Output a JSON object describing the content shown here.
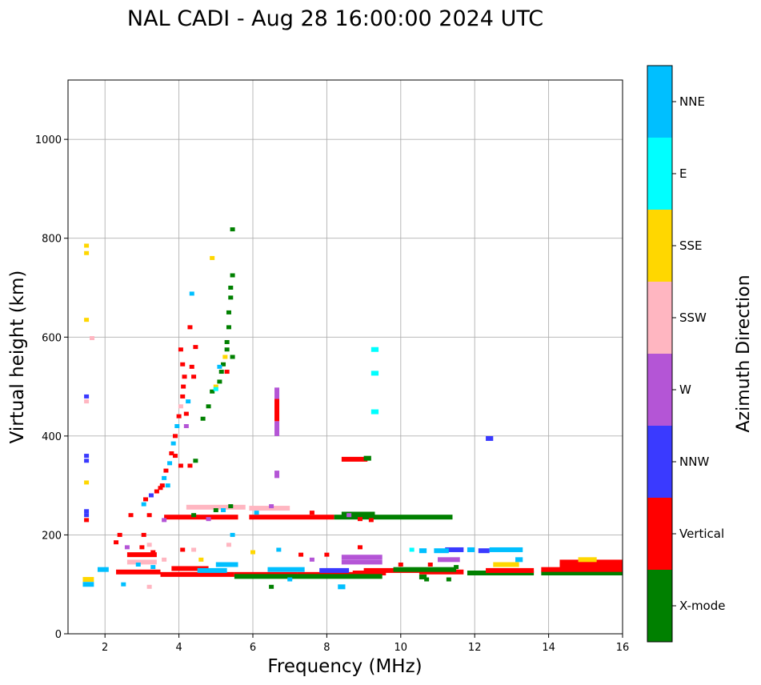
{
  "chart_data": {
    "type": "scatter",
    "title": "NAL CADI - Aug 28 16:00:00 2024 UTC",
    "xlabel": "Frequency (MHz)",
    "ylabel": "Virtual height (km)",
    "xlim": [
      1,
      16
    ],
    "ylim": [
      0,
      1120
    ],
    "xticks": [
      2,
      4,
      6,
      8,
      10,
      12,
      14,
      16
    ],
    "yticks": [
      0,
      200,
      400,
      600,
      800,
      1000
    ],
    "grid": true,
    "colorbar": {
      "label": "Azimuth Direction",
      "position": "right",
      "categories": [
        {
          "name": "X-mode",
          "color": "#008000"
        },
        {
          "name": "Vertical",
          "color": "#ff0000"
        },
        {
          "name": "NNW",
          "color": "#3a3aff"
        },
        {
          "name": "W",
          "color": "#b455d6"
        },
        {
          "name": "SSW",
          "color": "#ffb6c1"
        },
        {
          "name": "SSE",
          "color": "#ffd700"
        },
        {
          "name": "E",
          "color": "#00ffff"
        },
        {
          "name": "NNE",
          "color": "#00bfff"
        }
      ]
    },
    "segments": [
      {
        "f0": 2.3,
        "f1": 3.5,
        "h": 125,
        "c": "Vertical"
      },
      {
        "f0": 3.5,
        "f1": 5.5,
        "h": 120,
        "c": "Vertical"
      },
      {
        "f0": 5.5,
        "f1": 7.2,
        "h": 120,
        "c": "Vertical"
      },
      {
        "f0": 7.2,
        "f1": 9.0,
        "h": 120,
        "c": "Vertical"
      },
      {
        "f0": 8.7,
        "f1": 9.6,
        "h": 123,
        "c": "Vertical"
      },
      {
        "f0": 9.0,
        "f1": 10.5,
        "h": 128,
        "c": "Vertical"
      },
      {
        "f0": 10.5,
        "f1": 11.7,
        "h": 125,
        "c": "Vertical"
      },
      {
        "f0": 11.8,
        "f1": 13.6,
        "h": 123,
        "c": "X-mode"
      },
      {
        "f0": 12.3,
        "f1": 13.6,
        "h": 128,
        "c": "Vertical"
      },
      {
        "f0": 13.8,
        "f1": 16.0,
        "h": 123,
        "c": "X-mode"
      },
      {
        "f0": 13.8,
        "f1": 16.0,
        "h": 130,
        "c": "Vertical"
      },
      {
        "f0": 14.3,
        "f1": 16.0,
        "h": 137,
        "c": "Vertical"
      },
      {
        "f0": 14.3,
        "f1": 16.0,
        "h": 145,
        "c": "Vertical"
      },
      {
        "f0": 5.5,
        "f1": 9.5,
        "h": 116,
        "c": "X-mode"
      },
      {
        "f0": 9.8,
        "f1": 11.5,
        "h": 130,
        "c": "X-mode"
      },
      {
        "f0": 3.6,
        "f1": 5.6,
        "h": 236,
        "c": "Vertical"
      },
      {
        "f0": 5.9,
        "f1": 8.2,
        "h": 236,
        "c": "Vertical"
      },
      {
        "f0": 8.2,
        "f1": 11.4,
        "h": 236,
        "c": "X-mode"
      },
      {
        "f0": 8.4,
        "f1": 9.3,
        "h": 242,
        "c": "X-mode"
      },
      {
        "f0": 4.2,
        "f1": 5.8,
        "h": 256,
        "c": "SSW"
      },
      {
        "f0": 5.9,
        "f1": 7.0,
        "h": 254,
        "c": "SSW"
      },
      {
        "f0": 8.4,
        "f1": 9.1,
        "h": 353,
        "c": "Vertical"
      },
      {
        "f0": 9.0,
        "f1": 9.2,
        "h": 355,
        "c": "X-mode"
      },
      {
        "f0": 12.3,
        "f1": 12.5,
        "h": 395,
        "c": "NNW"
      },
      {
        "f0": 12.4,
        "f1": 13.3,
        "h": 170,
        "c": "NNE"
      },
      {
        "f0": 12.1,
        "f1": 12.4,
        "h": 168,
        "c": "NNW"
      },
      {
        "f0": 11.2,
        "f1": 11.7,
        "h": 170,
        "c": "NNW"
      },
      {
        "f0": 10.9,
        "f1": 11.3,
        "h": 168,
        "c": "NNE"
      },
      {
        "f0": 10.5,
        "f1": 10.7,
        "h": 168,
        "c": "NNE"
      },
      {
        "f0": 11.8,
        "f1": 12.0,
        "h": 170,
        "c": "NNE"
      },
      {
        "f0": 8.4,
        "f1": 9.5,
        "h": 145,
        "c": "W"
      },
      {
        "f0": 8.4,
        "f1": 9.5,
        "h": 155,
        "c": "W"
      },
      {
        "f0": 12.5,
        "f1": 13.2,
        "h": 140,
        "c": "SSE"
      },
      {
        "f0": 14.8,
        "f1": 15.3,
        "h": 150,
        "c": "SSE"
      },
      {
        "f0": 9.2,
        "f1": 9.4,
        "h": 575,
        "c": "E"
      },
      {
        "f0": 9.2,
        "f1": 9.4,
        "h": 527,
        "c": "E"
      },
      {
        "f0": 9.2,
        "f1": 9.4,
        "h": 449,
        "c": "E"
      },
      {
        "f0": 5.0,
        "f1": 5.6,
        "h": 140,
        "c": "NNE"
      },
      {
        "f0": 6.4,
        "f1": 7.4,
        "h": 130,
        "c": "NNE"
      },
      {
        "f0": 7.8,
        "f1": 8.6,
        "h": 128,
        "c": "NNW"
      },
      {
        "f0": 2.6,
        "f1": 3.4,
        "h": 160,
        "c": "Vertical"
      },
      {
        "f0": 2.6,
        "f1": 3.4,
        "h": 145,
        "c": "SSW"
      },
      {
        "f0": 3.8,
        "f1": 4.8,
        "h": 132,
        "c": "Vertical"
      },
      {
        "f0": 4.5,
        "f1": 5.3,
        "h": 128,
        "c": "NNE"
      },
      {
        "f0": 11.0,
        "f1": 11.6,
        "h": 150,
        "c": "W"
      },
      {
        "f0": 13.1,
        "f1": 13.3,
        "h": 150,
        "c": "NNE"
      },
      {
        "f0": 1.4,
        "f1": 1.7,
        "h": 110,
        "c": "SSE"
      },
      {
        "f0": 1.4,
        "f1": 1.7,
        "h": 100,
        "c": "NNE"
      },
      {
        "f0": 1.8,
        "f1": 2.1,
        "h": 130,
        "c": "NNE"
      },
      {
        "f0": 8.3,
        "f1": 8.5,
        "h": 95,
        "c": "NNE"
      },
      {
        "f0": 10.5,
        "f1": 10.7,
        "h": 115,
        "c": "X-mode"
      }
    ],
    "columns": [
      {
        "f": 6.65,
        "h0": 400,
        "h1": 430,
        "c": "W"
      },
      {
        "f": 6.65,
        "h0": 430,
        "h1": 475,
        "c": "Vertical"
      },
      {
        "f": 6.65,
        "h0": 475,
        "h1": 498,
        "c": "W"
      },
      {
        "f": 6.65,
        "h0": 315,
        "h1": 330,
        "c": "W"
      }
    ],
    "points": [
      {
        "f": 3.05,
        "h": 262,
        "c": "NNE"
      },
      {
        "f": 3.1,
        "h": 272,
        "c": "Vertical"
      },
      {
        "f": 3.25,
        "h": 280,
        "c": "NNW"
      },
      {
        "f": 3.4,
        "h": 288,
        "c": "Vertical"
      },
      {
        "f": 3.55,
        "h": 300,
        "c": "Vertical"
      },
      {
        "f": 3.6,
        "h": 315,
        "c": "NNE"
      },
      {
        "f": 3.65,
        "h": 330,
        "c": "Vertical"
      },
      {
        "f": 3.75,
        "h": 345,
        "c": "NNE"
      },
      {
        "f": 3.8,
        "h": 365,
        "c": "Vertical"
      },
      {
        "f": 3.85,
        "h": 385,
        "c": "NNE"
      },
      {
        "f": 3.9,
        "h": 400,
        "c": "Vertical"
      },
      {
        "f": 3.95,
        "h": 420,
        "c": "NNE"
      },
      {
        "f": 4.0,
        "h": 440,
        "c": "Vertical"
      },
      {
        "f": 4.05,
        "h": 460,
        "c": "SSW"
      },
      {
        "f": 4.1,
        "h": 480,
        "c": "Vertical"
      },
      {
        "f": 4.12,
        "h": 500,
        "c": "Vertical"
      },
      {
        "f": 4.15,
        "h": 520,
        "c": "Vertical"
      },
      {
        "f": 4.1,
        "h": 545,
        "c": "Vertical"
      },
      {
        "f": 4.05,
        "h": 575,
        "c": "Vertical"
      },
      {
        "f": 4.35,
        "h": 540,
        "c": "Vertical"
      },
      {
        "f": 4.4,
        "h": 520,
        "c": "Vertical"
      },
      {
        "f": 4.45,
        "h": 580,
        "c": "Vertical"
      },
      {
        "f": 4.3,
        "h": 620,
        "c": "Vertical"
      },
      {
        "f": 4.35,
        "h": 688,
        "c": "NNE"
      },
      {
        "f": 4.2,
        "h": 445,
        "c": "Vertical"
      },
      {
        "f": 4.25,
        "h": 470,
        "c": "NNE"
      },
      {
        "f": 4.2,
        "h": 420,
        "c": "W"
      },
      {
        "f": 3.9,
        "h": 360,
        "c": "Vertical"
      },
      {
        "f": 4.05,
        "h": 340,
        "c": "Vertical"
      },
      {
        "f": 3.7,
        "h": 300,
        "c": "NNE"
      },
      {
        "f": 3.5,
        "h": 295,
        "c": "Vertical"
      },
      {
        "f": 4.3,
        "h": 340,
        "c": "Vertical"
      },
      {
        "f": 4.45,
        "h": 350,
        "c": "X-mode"
      },
      {
        "f": 4.9,
        "h": 490,
        "c": "X-mode"
      },
      {
        "f": 5.0,
        "h": 500,
        "c": "SSE"
      },
      {
        "f": 5.1,
        "h": 510,
        "c": "X-mode"
      },
      {
        "f": 5.15,
        "h": 530,
        "c": "X-mode"
      },
      {
        "f": 5.2,
        "h": 545,
        "c": "X-mode"
      },
      {
        "f": 5.25,
        "h": 560,
        "c": "SSE"
      },
      {
        "f": 5.3,
        "h": 575,
        "c": "X-mode"
      },
      {
        "f": 5.3,
        "h": 590,
        "c": "X-mode"
      },
      {
        "f": 5.35,
        "h": 620,
        "c": "X-mode"
      },
      {
        "f": 5.35,
        "h": 650,
        "c": "X-mode"
      },
      {
        "f": 5.4,
        "h": 680,
        "c": "X-mode"
      },
      {
        "f": 5.4,
        "h": 700,
        "c": "X-mode"
      },
      {
        "f": 5.45,
        "h": 725,
        "c": "X-mode"
      },
      {
        "f": 5.45,
        "h": 818,
        "c": "X-mode"
      },
      {
        "f": 4.9,
        "h": 760,
        "c": "SSE"
      },
      {
        "f": 5.0,
        "h": 495,
        "c": "E"
      },
      {
        "f": 4.8,
        "h": 460,
        "c": "X-mode"
      },
      {
        "f": 4.65,
        "h": 435,
        "c": "X-mode"
      },
      {
        "f": 5.1,
        "h": 540,
        "c": "NNE"
      },
      {
        "f": 5.45,
        "h": 560,
        "c": "X-mode"
      },
      {
        "f": 5.3,
        "h": 530,
        "c": "Vertical"
      },
      {
        "f": 1.5,
        "h": 785,
        "c": "SSE"
      },
      {
        "f": 1.5,
        "h": 770,
        "c": "SSE"
      },
      {
        "f": 1.5,
        "h": 635,
        "c": "SSE"
      },
      {
        "f": 1.65,
        "h": 598,
        "c": "SSW"
      },
      {
        "f": 1.5,
        "h": 480,
        "c": "NNW"
      },
      {
        "f": 1.5,
        "h": 470,
        "c": "SSW"
      },
      {
        "f": 1.5,
        "h": 360,
        "c": "NNW"
      },
      {
        "f": 1.5,
        "h": 350,
        "c": "NNW"
      },
      {
        "f": 1.5,
        "h": 306,
        "c": "SSE"
      },
      {
        "f": 1.5,
        "h": 248,
        "c": "NNW"
      },
      {
        "f": 1.5,
        "h": 240,
        "c": "NNW"
      },
      {
        "f": 1.5,
        "h": 230,
        "c": "Vertical"
      },
      {
        "f": 2.4,
        "h": 200,
        "c": "Vertical"
      },
      {
        "f": 2.3,
        "h": 185,
        "c": "Vertical"
      },
      {
        "f": 2.7,
        "h": 240,
        "c": "Vertical"
      },
      {
        "f": 3.05,
        "h": 200,
        "c": "Vertical"
      },
      {
        "f": 3.2,
        "h": 180,
        "c": "SSW"
      },
      {
        "f": 3.0,
        "h": 175,
        "c": "Vertical"
      },
      {
        "f": 3.3,
        "h": 165,
        "c": "Vertical"
      },
      {
        "f": 2.6,
        "h": 175,
        "c": "W"
      },
      {
        "f": 2.9,
        "h": 140,
        "c": "NNE"
      },
      {
        "f": 3.3,
        "h": 135,
        "c": "NNE"
      },
      {
        "f": 3.6,
        "h": 150,
        "c": "SSW"
      },
      {
        "f": 4.1,
        "h": 170,
        "c": "Vertical"
      },
      {
        "f": 4.4,
        "h": 170,
        "c": "SSW"
      },
      {
        "f": 4.6,
        "h": 150,
        "c": "SSE"
      },
      {
        "f": 5.35,
        "h": 180,
        "c": "SSW"
      },
      {
        "f": 5.45,
        "h": 200,
        "c": "NNE"
      },
      {
        "f": 6.0,
        "h": 165,
        "c": "SSE"
      },
      {
        "f": 6.7,
        "h": 170,
        "c": "NNE"
      },
      {
        "f": 7.3,
        "h": 160,
        "c": "Vertical"
      },
      {
        "f": 7.6,
        "h": 150,
        "c": "W"
      },
      {
        "f": 8.0,
        "h": 160,
        "c": "Vertical"
      },
      {
        "f": 8.9,
        "h": 175,
        "c": "Vertical"
      },
      {
        "f": 10.3,
        "h": 170,
        "c": "E"
      },
      {
        "f": 10.0,
        "h": 140,
        "c": "Vertical"
      },
      {
        "f": 10.8,
        "h": 140,
        "c": "Vertical"
      },
      {
        "f": 11.5,
        "h": 135,
        "c": "X-mode"
      },
      {
        "f": 11.3,
        "h": 110,
        "c": "X-mode"
      },
      {
        "f": 10.7,
        "h": 110,
        "c": "X-mode"
      },
      {
        "f": 7.0,
        "h": 110,
        "c": "NNE"
      },
      {
        "f": 6.5,
        "h": 95,
        "c": "X-mode"
      },
      {
        "f": 2.5,
        "h": 100,
        "c": "NNE"
      },
      {
        "f": 3.2,
        "h": 95,
        "c": "SSW"
      },
      {
        "f": 3.6,
        "h": 230,
        "c": "W"
      },
      {
        "f": 4.4,
        "h": 240,
        "c": "X-mode"
      },
      {
        "f": 5.0,
        "h": 250,
        "c": "X-mode"
      },
      {
        "f": 5.4,
        "h": 258,
        "c": "X-mode"
      },
      {
        "f": 5.2,
        "h": 250,
        "c": "NNE"
      },
      {
        "f": 6.1,
        "h": 245,
        "c": "NNE"
      },
      {
        "f": 7.6,
        "h": 245,
        "c": "Vertical"
      },
      {
        "f": 8.6,
        "h": 240,
        "c": "W"
      },
      {
        "f": 8.9,
        "h": 232,
        "c": "Vertical"
      },
      {
        "f": 9.2,
        "h": 230,
        "c": "Vertical"
      },
      {
        "f": 6.5,
        "h": 258,
        "c": "W"
      },
      {
        "f": 4.8,
        "h": 232,
        "c": "W"
      },
      {
        "f": 3.2,
        "h": 240,
        "c": "Vertical"
      }
    ]
  }
}
